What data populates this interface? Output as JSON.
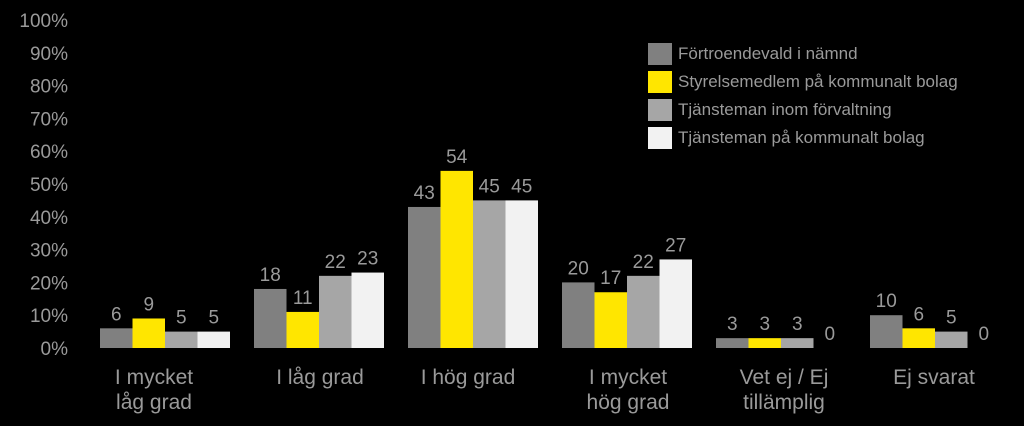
{
  "chart_data": {
    "type": "bar",
    "categories": [
      [
        "I mycket",
        "låg grad"
      ],
      [
        "I låg grad"
      ],
      [
        "I hög grad"
      ],
      [
        "I mycket",
        "hög grad"
      ],
      [
        "Vet ej / Ej",
        "tillämplig"
      ],
      [
        "Ej svarat"
      ]
    ],
    "series": [
      {
        "name": "Förtroendevald i nämnd",
        "color": "#808080",
        "values": [
          6,
          18,
          43,
          20,
          3,
          10
        ]
      },
      {
        "name": "Styrelsemedlem på kommunalt bolag",
        "color": "#ffe600",
        "values": [
          9,
          11,
          54,
          17,
          3,
          6
        ]
      },
      {
        "name": "Tjänsteman inom förvaltning",
        "color": "#a6a6a6",
        "values": [
          5,
          22,
          45,
          22,
          3,
          5
        ]
      },
      {
        "name": "Tjänsteman på kommunalt bolag",
        "color": "#f2f2f2",
        "values": [
          5,
          23,
          45,
          27,
          0,
          0
        ]
      }
    ],
    "ylim": [
      0,
      100
    ],
    "yticks": [
      "0%",
      "10%",
      "20%",
      "30%",
      "40%",
      "50%",
      "60%",
      "70%",
      "80%",
      "90%",
      "100%"
    ],
    "grid": false,
    "legend": "top-right"
  }
}
